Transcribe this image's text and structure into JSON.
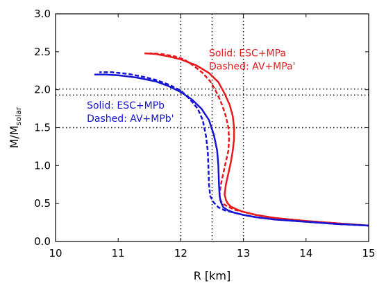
{
  "chart_data": {
    "type": "line",
    "title": "",
    "xlabel": "R [km]",
    "ylabel": "M/M",
    "ylabel_sub": "solar",
    "xlim": [
      10,
      15
    ],
    "ylim": [
      0.0,
      3.0
    ],
    "xticks": [
      "10",
      "11",
      "12",
      "13",
      "14",
      "15"
    ],
    "yticks": [
      "0.0",
      "0.5",
      "1.0",
      "1.5",
      "2.0",
      "2.5",
      "3.0"
    ],
    "grid": false,
    "reference_lines": {
      "vertical_x": [
        12.0,
        12.5,
        13.0
      ],
      "horizontal_y": [
        1.5,
        1.93,
        2.01
      ]
    },
    "annotations": [
      {
        "lines": [
          "Solid: ESC+MPa",
          "Dashed: AV+MPa'"
        ],
        "color": "#e8191c",
        "x": 12.45,
        "y": 2.44
      },
      {
        "lines": [
          "Solid: ESC+MPb",
          "Dashed: AV+MPb'"
        ],
        "color": "#1414d2",
        "x": 10.5,
        "y": 1.75
      }
    ],
    "series": [
      {
        "color": "#e8191c",
        "style": "solid",
        "x": [
          15.0,
          14.5,
          14.0,
          13.5,
          13.2,
          13.0,
          12.9,
          12.8,
          12.75,
          12.72,
          12.7,
          12.72,
          12.76,
          12.8,
          12.83,
          12.85,
          12.85,
          12.83,
          12.78,
          12.7,
          12.6,
          12.45,
          12.25,
          12.0,
          11.8,
          11.6,
          11.42
        ],
        "y": [
          0.21,
          0.24,
          0.27,
          0.31,
          0.35,
          0.39,
          0.42,
          0.46,
          0.5,
          0.55,
          0.62,
          0.75,
          0.9,
          1.05,
          1.2,
          1.35,
          1.5,
          1.65,
          1.8,
          1.95,
          2.1,
          2.22,
          2.32,
          2.4,
          2.44,
          2.47,
          2.48
        ]
      },
      {
        "color": "#e8191c",
        "style": "dashed",
        "x": [
          15.0,
          14.5,
          14.0,
          13.5,
          13.2,
          13.0,
          12.85,
          12.75,
          12.67,
          12.63,
          12.62,
          12.64,
          12.68,
          12.72,
          12.76,
          12.77,
          12.76,
          12.72,
          12.66,
          12.58,
          12.48,
          12.35,
          12.2,
          12.05,
          11.9,
          11.7,
          11.5
        ],
        "y": [
          0.21,
          0.24,
          0.27,
          0.31,
          0.35,
          0.39,
          0.42,
          0.46,
          0.5,
          0.55,
          0.62,
          0.75,
          0.9,
          1.05,
          1.2,
          1.35,
          1.5,
          1.65,
          1.8,
          1.95,
          2.1,
          2.22,
          2.32,
          2.4,
          2.44,
          2.47,
          2.48
        ]
      },
      {
        "color": "#1414d2",
        "style": "solid",
        "x": [
          15.0,
          14.5,
          14.0,
          13.5,
          13.2,
          13.0,
          12.85,
          12.75,
          12.68,
          12.64,
          12.62,
          12.61,
          12.6,
          12.58,
          12.53,
          12.45,
          12.33,
          12.18,
          12.0,
          11.8,
          11.6,
          11.3,
          11.0,
          10.8,
          10.62
        ],
        "y": [
          0.21,
          0.23,
          0.26,
          0.29,
          0.32,
          0.35,
          0.38,
          0.41,
          0.45,
          0.52,
          0.6,
          0.75,
          1.0,
          1.2,
          1.4,
          1.6,
          1.75,
          1.87,
          1.97,
          2.05,
          2.11,
          2.16,
          2.19,
          2.2,
          2.2
        ]
      },
      {
        "color": "#1414d2",
        "style": "dashed",
        "x": [
          15.0,
          14.5,
          14.0,
          13.5,
          13.2,
          13.0,
          12.85,
          12.7,
          12.6,
          12.52,
          12.47,
          12.45,
          12.44,
          12.43,
          12.4,
          12.35,
          12.27,
          12.15,
          12.0,
          11.8,
          11.6,
          11.4,
          11.15,
          10.9,
          10.7
        ],
        "y": [
          0.21,
          0.23,
          0.26,
          0.29,
          0.32,
          0.35,
          0.38,
          0.41,
          0.45,
          0.52,
          0.6,
          0.75,
          1.0,
          1.2,
          1.4,
          1.6,
          1.75,
          1.87,
          1.99,
          2.07,
          2.13,
          2.17,
          2.21,
          2.23,
          2.23
        ]
      }
    ]
  }
}
